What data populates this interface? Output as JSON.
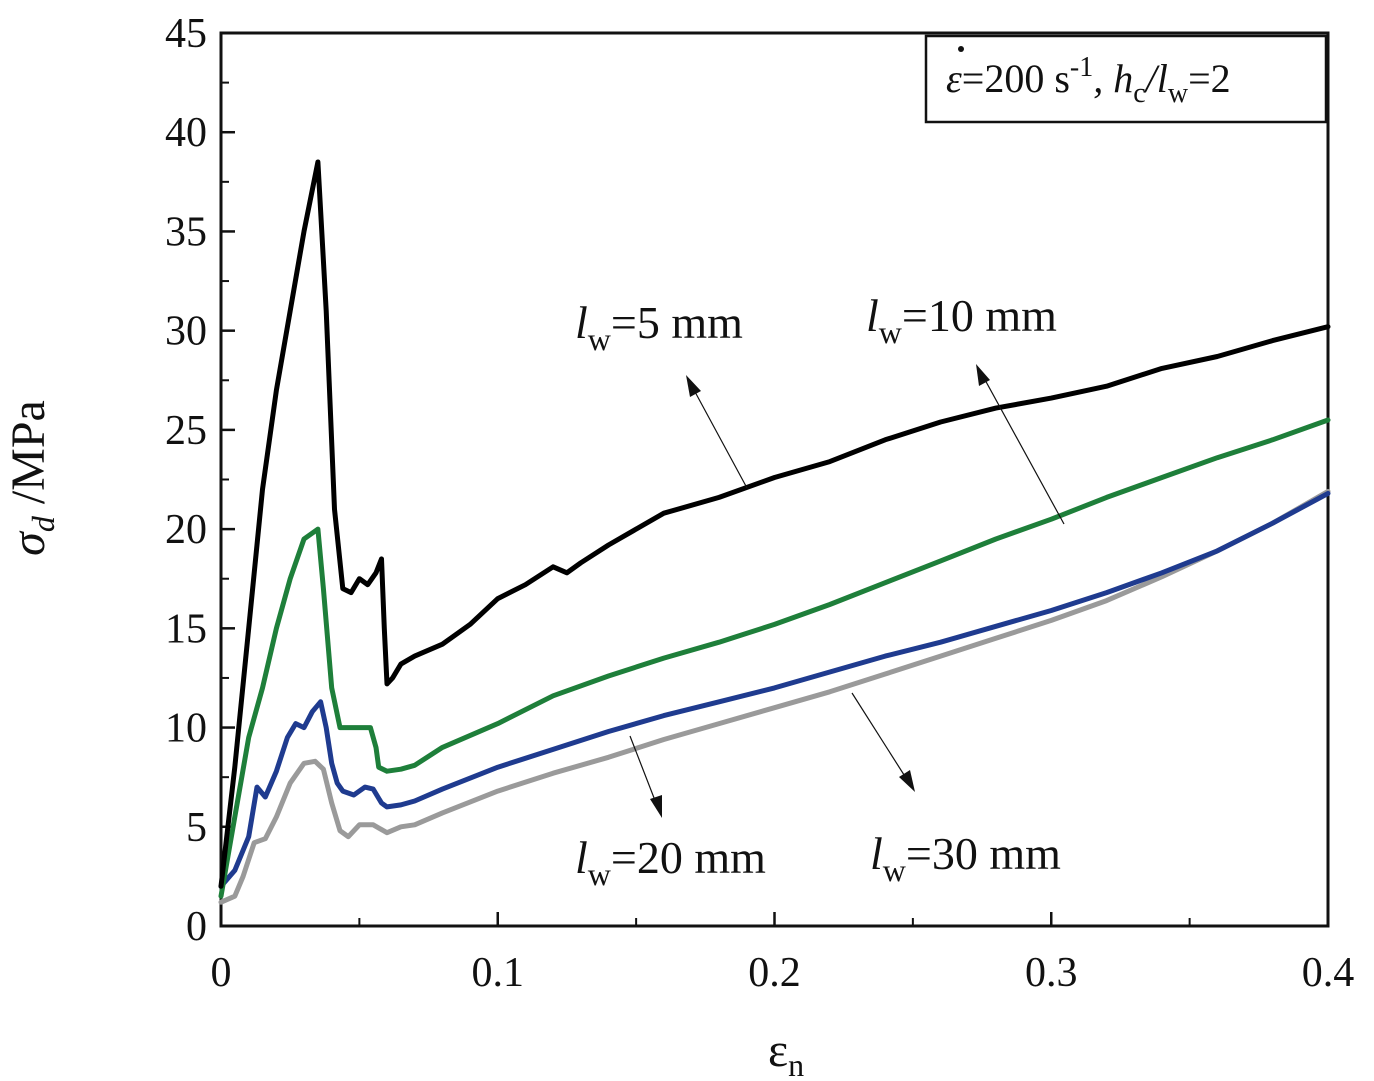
{
  "chart_data": {
    "type": "line",
    "xlabel": "ε",
    "xlabel_sub": "n",
    "ylabel": "σ",
    "ylabel_sub": "d",
    "ylabel_unit": " /MPa",
    "xlim": [
      0,
      0.4
    ],
    "ylim": [
      0,
      45
    ],
    "x_ticks": [
      0,
      0.1,
      0.2,
      0.3,
      0.4
    ],
    "x_tick_labels": [
      "0",
      "0.1",
      "0.2",
      "0.3",
      "0.4"
    ],
    "y_ticks": [
      0,
      5,
      10,
      15,
      20,
      25,
      30,
      35,
      40,
      45
    ],
    "y_tick_labels": [
      "0",
      "5",
      "10",
      "15",
      "20",
      "25",
      "30",
      "35",
      "40",
      "45"
    ],
    "grid": false,
    "annotation_box": {
      "parts": [
        "ε",
        "=200 s",
        "-1",
        ", h",
        "c",
        "/l",
        "w",
        "=2"
      ],
      "position": "top-right"
    },
    "series": [
      {
        "name": "l_w=5 mm",
        "label_main": "l",
        "label_sub": "w",
        "label_value": "=5 mm",
        "color": "#000000",
        "x": [
          0,
          0.005,
          0.01,
          0.015,
          0.02,
          0.025,
          0.03,
          0.035,
          0.038,
          0.041,
          0.044,
          0.047,
          0.05,
          0.053,
          0.056,
          0.058,
          0.059,
          0.06,
          0.062,
          0.065,
          0.07,
          0.08,
          0.09,
          0.1,
          0.11,
          0.12,
          0.125,
          0.13,
          0.14,
          0.16,
          0.18,
          0.2,
          0.22,
          0.24,
          0.26,
          0.28,
          0.3,
          0.32,
          0.34,
          0.36,
          0.38,
          0.4
        ],
        "y": [
          2,
          8,
          15,
          22,
          27,
          31,
          35,
          38.5,
          31,
          21,
          17,
          16.8,
          17.5,
          17.2,
          17.8,
          18.5,
          15,
          12.2,
          12.5,
          13.2,
          13.6,
          14.2,
          15.2,
          16.5,
          17.2,
          18.1,
          17.8,
          18.3,
          19.2,
          20.8,
          21.6,
          22.6,
          23.4,
          24.5,
          25.4,
          26.1,
          26.6,
          27.2,
          28.1,
          28.7,
          29.5,
          30.2
        ]
      },
      {
        "name": "l_w=10 mm",
        "label_main": "l",
        "label_sub": "w",
        "label_value": "=10 mm",
        "color": "#1e7f3a",
        "x": [
          0,
          0.005,
          0.01,
          0.015,
          0.02,
          0.025,
          0.03,
          0.035,
          0.037,
          0.04,
          0.043,
          0.046,
          0.05,
          0.054,
          0.056,
          0.057,
          0.06,
          0.065,
          0.07,
          0.08,
          0.1,
          0.12,
          0.14,
          0.16,
          0.18,
          0.2,
          0.22,
          0.24,
          0.26,
          0.28,
          0.3,
          0.32,
          0.34,
          0.36,
          0.38,
          0.4
        ],
        "y": [
          1.5,
          5.5,
          9.5,
          12,
          15,
          17.5,
          19.5,
          20,
          17,
          12,
          10,
          10,
          10,
          10,
          9,
          8,
          7.8,
          7.9,
          8.1,
          9,
          10.2,
          11.6,
          12.6,
          13.5,
          14.3,
          15.2,
          16.2,
          17.3,
          18.4,
          19.5,
          20.5,
          21.6,
          22.6,
          23.6,
          24.5,
          25.5
        ]
      },
      {
        "name": "l_w=20 mm",
        "label_main": "l",
        "label_sub": "w",
        "label_value": "=20 mm",
        "color": "#1f3b8f",
        "x": [
          0,
          0.005,
          0.01,
          0.013,
          0.016,
          0.02,
          0.024,
          0.027,
          0.03,
          0.033,
          0.036,
          0.038,
          0.04,
          0.042,
          0.044,
          0.048,
          0.052,
          0.055,
          0.058,
          0.06,
          0.065,
          0.07,
          0.08,
          0.1,
          0.12,
          0.14,
          0.16,
          0.18,
          0.2,
          0.22,
          0.24,
          0.26,
          0.28,
          0.3,
          0.32,
          0.34,
          0.36,
          0.38,
          0.4
        ],
        "y": [
          2,
          2.8,
          4.5,
          7,
          6.5,
          7.8,
          9.5,
          10.2,
          10,
          10.8,
          11.3,
          10,
          8.2,
          7.2,
          6.8,
          6.6,
          7,
          6.9,
          6.2,
          6,
          6.1,
          6.3,
          6.9,
          8,
          8.9,
          9.8,
          10.6,
          11.3,
          12,
          12.8,
          13.6,
          14.3,
          15.1,
          15.9,
          16.8,
          17.8,
          18.9,
          20.3,
          21.8
        ]
      },
      {
        "name": "l_w=30 mm",
        "label_main": "l",
        "label_sub": "w",
        "label_value": "=30 mm",
        "color": "#9a9a9a",
        "x": [
          0,
          0.005,
          0.008,
          0.012,
          0.016,
          0.02,
          0.025,
          0.03,
          0.034,
          0.037,
          0.04,
          0.043,
          0.046,
          0.05,
          0.055,
          0.06,
          0.065,
          0.07,
          0.08,
          0.1,
          0.12,
          0.14,
          0.16,
          0.18,
          0.2,
          0.22,
          0.24,
          0.26,
          0.28,
          0.3,
          0.32,
          0.34,
          0.36,
          0.38,
          0.4
        ],
        "y": [
          1.2,
          1.5,
          2.5,
          4.2,
          4.4,
          5.5,
          7.2,
          8.2,
          8.3,
          7.9,
          6.2,
          4.8,
          4.5,
          5.1,
          5.1,
          4.7,
          5,
          5.1,
          5.7,
          6.8,
          7.7,
          8.5,
          9.4,
          10.2,
          11,
          11.8,
          12.7,
          13.6,
          14.5,
          15.4,
          16.4,
          17.6,
          18.9,
          20.3,
          21.9
        ]
      }
    ]
  }
}
